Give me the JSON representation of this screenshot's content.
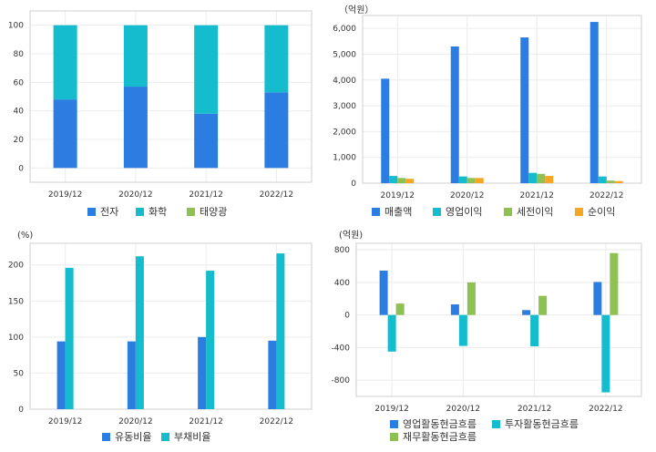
{
  "colors": {
    "blue": "#2b7de1",
    "cyan": "#14bccd",
    "green": "#8dc152",
    "orange": "#f5a623"
  },
  "chart_data": [
    {
      "type": "bar",
      "stacked": true,
      "unit": "",
      "categories": [
        "2019/12",
        "2020/12",
        "2021/12",
        "2022/12"
      ],
      "yticks": [
        0,
        20,
        40,
        60,
        80,
        100
      ],
      "ylim": [
        -10,
        110
      ],
      "series": [
        {
          "name": "전자",
          "color": "#2b7de1",
          "values": [
            48,
            57,
            38,
            53
          ]
        },
        {
          "name": "화학",
          "color": "#14bccd",
          "values": [
            52,
            43,
            62,
            47
          ]
        },
        {
          "name": "태양광",
          "color": "#8dc152",
          "values": [
            0,
            0,
            0,
            0
          ]
        }
      ],
      "legend": "bottom",
      "grid": true
    },
    {
      "type": "bar",
      "stacked": false,
      "unit": "（억원）",
      "categories": [
        "2019/12",
        "2020/12",
        "2021/12",
        "2022/12"
      ],
      "yticks": [
        0,
        1000,
        2000,
        3000,
        4000,
        5000,
        6000
      ],
      "yticklabels": [
        "0",
        "1,000",
        "2,000",
        "3,000",
        "4,000",
        "5,000",
        "6,000"
      ],
      "ylim": [
        0,
        6500
      ],
      "series": [
        {
          "name": "매출액",
          "color": "#2b7de1",
          "values": [
            4050,
            5300,
            5650,
            6250
          ]
        },
        {
          "name": "영업이익",
          "color": "#14bccd",
          "values": [
            280,
            260,
            400,
            260
          ]
        },
        {
          "name": "세전이익",
          "color": "#8dc152",
          "values": [
            200,
            200,
            360,
            100
          ]
        },
        {
          "name": "순이익",
          "color": "#f5a623",
          "values": [
            170,
            200,
            280,
            80
          ]
        }
      ],
      "legend": "bottom",
      "grid": true
    },
    {
      "type": "bar",
      "stacked": false,
      "unit": "(%)",
      "categories": [
        "2019/12",
        "2020/12",
        "2021/12",
        "2022/12"
      ],
      "yticks": [
        0,
        50,
        100,
        150,
        200
      ],
      "ylim": [
        0,
        230
      ],
      "series": [
        {
          "name": "유동비율",
          "color": "#2b7de1",
          "values": [
            94,
            94,
            100,
            95
          ]
        },
        {
          "name": "부채비율",
          "color": "#14bccd",
          "values": [
            196,
            212,
            192,
            216
          ]
        }
      ],
      "legend": "bottom",
      "grid": true
    },
    {
      "type": "bar",
      "stacked": false,
      "unit": "(억원)",
      "categories": [
        "2019/12",
        "2020/12",
        "2021/12",
        "2022/12"
      ],
      "yticks": [
        -800,
        -400,
        0,
        400,
        800
      ],
      "ylim": [
        -1000,
        880
      ],
      "series": [
        {
          "name": "영업활동현금흐름",
          "color": "#2b7de1",
          "values": [
            545,
            130,
            60,
            405
          ]
        },
        {
          "name": "투자활동현금흐름",
          "color": "#14bccd",
          "values": [
            -450,
            -380,
            -385,
            -950
          ]
        },
        {
          "name": "재무활동현금흐름",
          "color": "#8dc152",
          "values": [
            140,
            400,
            235,
            760
          ]
        }
      ],
      "legend": "bottom",
      "grid": true
    }
  ]
}
